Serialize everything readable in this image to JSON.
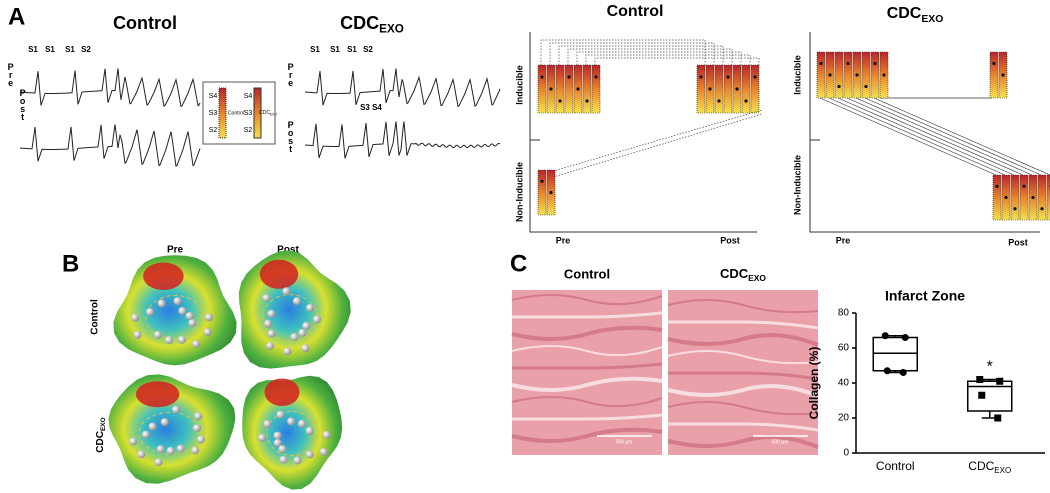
{
  "panel_labels": [
    "A",
    "B",
    "C"
  ],
  "panel_a": {
    "ecg": {
      "control_title": "Control",
      "cdc_title": {
        "main": "CDC",
        "sub": "EXO"
      },
      "pre": "Pre",
      "post": "Post",
      "control_stims": [
        "S1",
        "S1",
        "S1",
        "S2"
      ],
      "cdc_stims": [
        "S1",
        "S1",
        "S1",
        "S2"
      ],
      "cdc_post_stims": [
        "S3",
        "S4"
      ],
      "legend": {
        "levels": [
          "S4",
          "S3",
          "S2"
        ],
        "control": "Control",
        "cdc": {
          "main": "CDC",
          "sub": "EXO"
        }
      }
    },
    "inducibility": {
      "control_title": "Control",
      "cdc_title": {
        "main": "CDC",
        "sub": "EXO"
      },
      "inducible": "Inducible",
      "non_inducible": "Non-Inducible",
      "pre": "Pre",
      "post": "Post"
    }
  },
  "panel_b": {
    "columns": [
      "Pre",
      "Post"
    ],
    "row_control": "Control",
    "row_cdc": {
      "main": "CDC",
      "sub": "EXO"
    }
  },
  "panel_c": {
    "image_titles": {
      "control": "Control",
      "cdc": {
        "main": "CDC",
        "sub": "EXO"
      }
    },
    "scale_bar": "500 µm"
  },
  "chart_data": {
    "type": "box",
    "title": "Infarct Zone",
    "y_label": "Collagen (%)",
    "categories": [
      {
        "text": "Control"
      },
      {
        "text": "CDC",
        "sub": "EXO"
      }
    ],
    "boxes": [
      {
        "whisker_low": 46,
        "q1": 47,
        "median": 57,
        "q3": 66,
        "whisker_high": 67,
        "points": [
          67,
          66,
          47,
          46
        ]
      },
      {
        "whisker_low": 20,
        "q1": 24,
        "median": 38,
        "q3": 41,
        "whisker_high": 42,
        "points": [
          42,
          41,
          33,
          20
        ]
      }
    ],
    "annotation": "*",
    "color": "#000000",
    "ylim": [
      0,
      80
    ],
    "yticks": [
      0,
      20,
      40,
      60,
      80
    ]
  }
}
